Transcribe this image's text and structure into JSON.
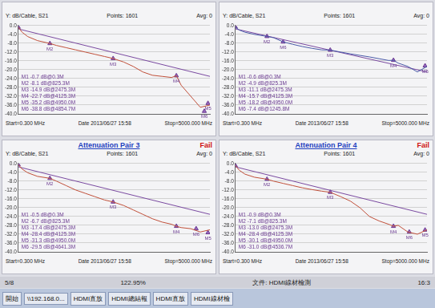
{
  "chart_data": [
    {
      "type": "line",
      "y_label": "Y: dB/Cable, S21",
      "annotations": {
        "points": "Points: 1601",
        "avg": "Avg: 0",
        "start": "Start=0.300 MHz",
        "stop": "Stop=5000.000 MHz",
        "date": "Date 2013/06/27 15:58"
      },
      "xlim": [
        0.3,
        5000
      ],
      "ylim": [
        -40,
        0
      ],
      "yticks": [
        {
          "value": 0,
          "label": "0.0"
        },
        {
          "value": -4,
          "label": "-4.0"
        },
        {
          "value": -8,
          "label": "-8.0"
        },
        {
          "value": -12,
          "label": "-12.0"
        },
        {
          "value": -16,
          "label": "-16.0"
        },
        {
          "value": -20,
          "label": "-20.0"
        },
        {
          "value": -24,
          "label": "-24.0"
        },
        {
          "value": -28,
          "label": "-28.0"
        },
        {
          "value": -32,
          "label": "-32.0"
        },
        {
          "value": -36,
          "label": "-36.0"
        },
        {
          "value": -40,
          "label": "-40.0"
        }
      ],
      "tick_labels": "y",
      "grid": true,
      "x": [
        0.3,
        100,
        250,
        500,
        825.3,
        1000,
        1250,
        1500,
        1750,
        2000,
        2250,
        2475.3,
        2750,
        3000,
        3250,
        3500,
        3750,
        4000,
        4125.3,
        4250,
        4500,
        4750,
        5000
      ],
      "series": [
        {
          "color": "#c0503a",
          "values": [
            -0.7,
            -3,
            -5,
            -6.8,
            -8.1,
            -9,
            -10,
            -11,
            -12,
            -13,
            -14,
            -14.9,
            -16.5,
            -18.5,
            -21,
            -22.5,
            -23,
            -23.5,
            -22.7,
            -27,
            -32,
            -37,
            -36
          ]
        },
        {
          "color": "#7a4aa0",
          "x": [
            0.3,
            5000
          ],
          "values": [
            -1.5,
            -23
          ]
        }
      ],
      "markers": [
        {
          "label": "M1",
          "x": 0.3,
          "value": -0.7,
          "text": "M1 -0.7 dB@0.3M"
        },
        {
          "label": "M2",
          "x": 825.3,
          "value": -8.1,
          "text": "M2 -8.1 dB@825.3M"
        },
        {
          "label": "M3",
          "x": 2475.3,
          "value": -14.9,
          "text": "M3 -14.9 dB@2475.3M"
        },
        {
          "label": "M4",
          "x": 4125.3,
          "value": -22.7,
          "text": "M4 -22.7 dB@4125.3M"
        },
        {
          "label": "M5",
          "x": 4950,
          "value": -35.2,
          "text": "M5 -35.2 dB@4950.0M"
        },
        {
          "label": "M6",
          "x": 4854.7,
          "value": -38.8,
          "text": "M6 -38.8 dB@4854.7M"
        }
      ]
    },
    {
      "type": "line",
      "y_label": "Y: dB/Cable, S21",
      "annotations": {
        "points": "Points: 1601",
        "avg": "Avg: 0",
        "start": "Start=0.300 MHz",
        "stop": "Stop=5000.000 MHz",
        "date": "Date 2013/06/27 15:58"
      },
      "xlim": [
        0.3,
        5000
      ],
      "ylim": [
        -40,
        0
      ],
      "yticks": [
        {
          "value": 0,
          "label": "0.0"
        },
        {
          "value": -4,
          "label": "-4.0"
        },
        {
          "value": -8,
          "label": "-8.0"
        },
        {
          "value": -12,
          "label": "-12.0"
        },
        {
          "value": -16,
          "label": "-16.0"
        },
        {
          "value": -20,
          "label": "-20.0"
        },
        {
          "value": -24,
          "label": "-24.0"
        },
        {
          "value": -28,
          "label": "-28.0"
        },
        {
          "value": -32,
          "label": "-32.0"
        },
        {
          "value": -36,
          "label": "-36.0"
        },
        {
          "value": -40,
          "label": "-40.0"
        }
      ],
      "tick_labels": "y",
      "grid": true,
      "x": [
        0.3,
        100,
        250,
        500,
        825.3,
        1000,
        1250,
        1500,
        1750,
        2000,
        2250,
        2475.3,
        2750,
        3000,
        3250,
        3500,
        3750,
        4000,
        4125.3,
        4250,
        4500,
        4750,
        5000
      ],
      "series": [
        {
          "color": "#4a5aa8",
          "values": [
            -0.6,
            -2,
            -3,
            -4,
            -4.9,
            -5.5,
            -7.4,
            -8.5,
            -9.5,
            -10.3,
            -11,
            -11.1,
            -12,
            -12.8,
            -13.5,
            -14.2,
            -15,
            -15.8,
            -15.7,
            -17,
            -18.5,
            -21,
            -18.5
          ]
        },
        {
          "color": "#7a4aa0",
          "x": [
            0.3,
            5000
          ],
          "values": [
            -1.5,
            -21
          ]
        }
      ],
      "markers": [
        {
          "label": "M1",
          "x": 0.3,
          "value": -0.6,
          "text": "M1 -0.6 dB@0.3M"
        },
        {
          "label": "M2",
          "x": 825.3,
          "value": -4.9,
          "text": "M2 -4.9 dB@825.3M"
        },
        {
          "label": "M3",
          "x": 2475.3,
          "value": -11.1,
          "text": "M3 -11.1 dB@2475.3M"
        },
        {
          "label": "M4",
          "x": 4125.3,
          "value": -15.7,
          "text": "M4 -15.7 dB@4125.3M"
        },
        {
          "label": "M5",
          "x": 4950,
          "value": -18.2,
          "text": "M5 -18.2 dB@4950.0M"
        },
        {
          "label": "M6",
          "x": 1245.8,
          "value": -7.4,
          "text": "M6 -7.4 dB@1245.8M"
        }
      ]
    },
    {
      "type": "line",
      "title": "Attenuation  Pair 3",
      "y_label": "Y: dB/Cable, S21",
      "annotations": {
        "status": "Fail",
        "points": "Points: 1601",
        "avg": "Avg: 0",
        "start": "Start=0.300 MHz",
        "stop": "Stop=5000.000 MHz",
        "date": "Date 2013/06/27 15:58"
      },
      "xlim": [
        0.3,
        5000
      ],
      "ylim": [
        -40,
        0
      ],
      "yticks": [
        {
          "value": 0,
          "label": "0.0"
        },
        {
          "value": -4,
          "label": "-4.0"
        },
        {
          "value": -8,
          "label": "-8.0"
        },
        {
          "value": -12,
          "label": "-12.0"
        },
        {
          "value": -16,
          "label": "-16.0"
        },
        {
          "value": -20,
          "label": "-20.0"
        },
        {
          "value": -24,
          "label": "-24.0"
        },
        {
          "value": -28,
          "label": "-28.0"
        },
        {
          "value": -32,
          "label": "-32.0"
        },
        {
          "value": -36,
          "label": "-36.0"
        },
        {
          "value": -40,
          "label": "-40.0"
        }
      ],
      "tick_labels": "y",
      "grid": true,
      "x": [
        0.3,
        100,
        250,
        500,
        825.3,
        1000,
        1250,
        1500,
        1750,
        2000,
        2250,
        2475.3,
        2750,
        3000,
        3250,
        3500,
        3750,
        4000,
        4125.3,
        4250,
        4500,
        4750,
        5000
      ],
      "series": [
        {
          "color": "#c0503a",
          "values": [
            -0.5,
            -2.5,
            -4.2,
            -5.8,
            -6.7,
            -8,
            -10,
            -12,
            -13.5,
            -15,
            -16.5,
            -17.4,
            -19,
            -21,
            -23,
            -25,
            -26.5,
            -27.5,
            -28.4,
            -29,
            -29.5,
            -31,
            -30
          ]
        },
        {
          "color": "#7a4aa0",
          "x": [
            0.3,
            5000
          ],
          "values": [
            -1.5,
            -23
          ]
        }
      ],
      "markers": [
        {
          "label": "M1",
          "x": 0.3,
          "value": -0.5,
          "text": "M1 -0.5 dB@0.3M"
        },
        {
          "label": "M2",
          "x": 825.3,
          "value": -6.7,
          "text": "M2 -6.7 dB@825.3M"
        },
        {
          "label": "M3",
          "x": 2475.3,
          "value": -17.4,
          "text": "M3 -17.4 dB@2475.3M"
        },
        {
          "label": "M4",
          "x": 4125.3,
          "value": -28.4,
          "text": "M4 -28.4 dB@4125.3M"
        },
        {
          "label": "M5",
          "x": 4950,
          "value": -31.3,
          "text": "M5 -31.3 dB@4950.0M"
        },
        {
          "label": "M6",
          "x": 4641.3,
          "value": -29.5,
          "text": "M6 -29.5 dB@4641.3M"
        }
      ]
    },
    {
      "type": "line",
      "title": "Attenuation  Pair 4",
      "y_label": "Y: dB/Cable, S21",
      "annotations": {
        "status": "Fail",
        "points": "Points: 1601",
        "avg": "Avg: 0",
        "start": "Start=0.300 MHz",
        "stop": "Stop=5000.000 MHz",
        "date": "Date 2013/06/27 15:58"
      },
      "xlim": [
        0.3,
        5000
      ],
      "ylim": [
        -40,
        0
      ],
      "yticks": [
        {
          "value": 0,
          "label": "0.0"
        },
        {
          "value": -4,
          "label": "-4.0"
        },
        {
          "value": -8,
          "label": "-8.0"
        },
        {
          "value": -12,
          "label": "-12.0"
        },
        {
          "value": -16,
          "label": "-16.0"
        },
        {
          "value": -20,
          "label": "-20.0"
        },
        {
          "value": -24,
          "label": "-24.0"
        },
        {
          "value": -28,
          "label": "-28.0"
        },
        {
          "value": -32,
          "label": "-32.0"
        },
        {
          "value": -36,
          "label": "-36.0"
        },
        {
          "value": -40,
          "label": "-40.0"
        }
      ],
      "tick_labels": "y",
      "grid": true,
      "x": [
        0.3,
        100,
        250,
        500,
        825.3,
        1000,
        1250,
        1500,
        1750,
        2000,
        2250,
        2475.3,
        2750,
        3000,
        3250,
        3500,
        3750,
        4000,
        4125.3,
        4250,
        4500,
        4750,
        5000
      ],
      "series": [
        {
          "color": "#c0503a",
          "values": [
            -0.9,
            -3,
            -4.8,
            -6.2,
            -7.1,
            -8,
            -9,
            -10,
            -11,
            -11.8,
            -12.5,
            -13,
            -15,
            -17,
            -20,
            -24,
            -26,
            -27.5,
            -28.4,
            -28,
            -31,
            -32,
            -30
          ]
        },
        {
          "color": "#7a4aa0",
          "x": [
            0.3,
            5000
          ],
          "values": [
            -1.5,
            -23
          ]
        }
      ],
      "markers": [
        {
          "label": "M1",
          "x": 0.3,
          "value": -0.9,
          "text": "M1 -0.9 dB@0.3M"
        },
        {
          "label": "M2",
          "x": 825.3,
          "value": -7.1,
          "text": "M2 -7.1 dB@825.3M"
        },
        {
          "label": "M3",
          "x": 2475.3,
          "value": -13.0,
          "text": "M3 -13.0 dB@2475.3M"
        },
        {
          "label": "M4",
          "x": 4125.3,
          "value": -28.4,
          "text": "M4 -28.4 dB@4125.3M"
        },
        {
          "label": "M5",
          "x": 4950,
          "value": -30.1,
          "text": "M5 -30.1 dB@4950.0M"
        },
        {
          "label": "M6",
          "x": 4536.7,
          "value": -31.0,
          "text": "M6 -31.0 dB@4536.7M"
        }
      ]
    }
  ],
  "screen": {
    "status_bar": [
      "5/8",
      "122.95%",
      "文件: HDMI線材檢測",
      "16:3"
    ],
    "taskbar": [
      "開始",
      "\\\\192.168.0...",
      "HDMI直放",
      "HDMI總結報",
      "HDMI直放",
      "HDMI線材檢"
    ]
  }
}
